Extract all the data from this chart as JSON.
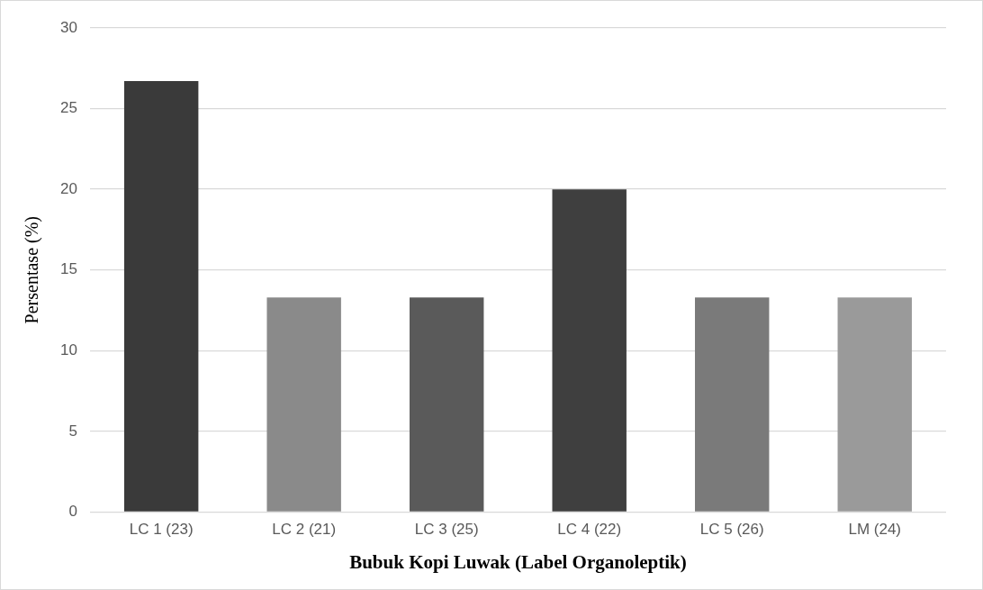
{
  "chart_data": {
    "type": "bar",
    "xlabel": "Bubuk Kopi Luwak (Label Organoleptik)",
    "ylabel": "Persentase (%)",
    "categories": [
      "LC 1 (23)",
      "LC 2 (21)",
      "LC 3 (25)",
      "LC 4 (22)",
      "LC 5 (26)",
      "LM (24)"
    ],
    "values": [
      26.7,
      13.3,
      13.3,
      20,
      13.3,
      13.3
    ],
    "colors": [
      "#3a3a3a",
      "#8a8a8a",
      "#5a5a5a",
      "#3f3f3f",
      "#7a7a7a",
      "#9a9a9a"
    ],
    "ylim": [
      0,
      30
    ],
    "yticks": [
      0,
      5,
      10,
      15,
      20,
      25,
      30
    ],
    "grid": "y"
  }
}
